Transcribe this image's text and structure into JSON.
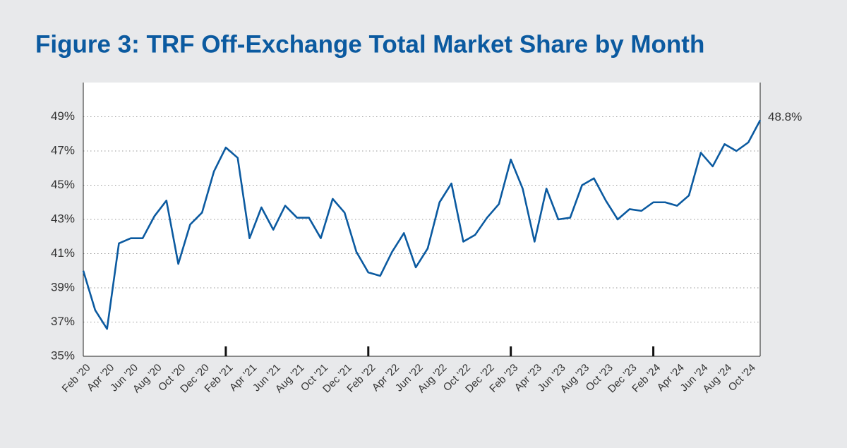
{
  "chart_data": {
    "type": "line",
    "title": "Figure 3: TRF Off-Exchange Total Market Share by Month",
    "categories": [
      "Feb '20",
      null,
      "Apr '20",
      null,
      "Jun '20",
      null,
      "Aug '20",
      null,
      "Oct '20",
      null,
      "Dec '20",
      null,
      "Feb '21",
      null,
      "Apr '21",
      null,
      "Jun '21",
      null,
      "Aug '21",
      null,
      "Oct '21",
      null,
      "Dec '21",
      null,
      "Feb '22",
      null,
      "Apr '22",
      null,
      "Jun '22",
      null,
      "Aug '22",
      null,
      "Oct '22",
      null,
      "Dec '22",
      null,
      "Feb '23",
      null,
      "Apr '23",
      null,
      "Jun '23",
      null,
      "Aug '23",
      null,
      "Oct '23",
      null,
      "Dec '23",
      null,
      "Feb '24",
      null,
      "Apr '24",
      null,
      "Jun '24",
      null,
      "Aug '24",
      null,
      "Oct '24",
      null
    ],
    "series": [
      {
        "name": "TRF Off-Exchange Total Market Share",
        "color": "#0b5aa0",
        "values": [
          40.0,
          37.7,
          36.6,
          41.6,
          41.9,
          41.9,
          43.2,
          44.1,
          40.4,
          42.7,
          43.4,
          45.8,
          47.2,
          46.6,
          41.9,
          43.7,
          42.4,
          43.8,
          43.1,
          43.1,
          41.9,
          44.2,
          43.4,
          41.1,
          39.9,
          39.7,
          41.1,
          42.2,
          40.2,
          41.3,
          44.0,
          45.1,
          41.7,
          42.1,
          43.1,
          43.9,
          46.5,
          44.8,
          41.7,
          44.8,
          43.0,
          43.1,
          45.0,
          45.4,
          44.1,
          43.0,
          43.6,
          43.5,
          44.0,
          44.0,
          43.8,
          44.4,
          46.9,
          46.1,
          47.4,
          47.0,
          47.5,
          48.8
        ],
        "value_labels": [
          null,
          null,
          null,
          null,
          null,
          null,
          null,
          null,
          null,
          null,
          null,
          null,
          null,
          null,
          null,
          null,
          null,
          null,
          null,
          null,
          null,
          null,
          null,
          null,
          null,
          null,
          null,
          null,
          null,
          null,
          null,
          null,
          null,
          null,
          null,
          null,
          null,
          null,
          null,
          null,
          null,
          null,
          null,
          null,
          null,
          null,
          null,
          null,
          null,
          null,
          null,
          null,
          null,
          null,
          null,
          null,
          null,
          "48.8%"
        ]
      }
    ],
    "ylim": [
      35,
      51
    ],
    "yticks": [
      {
        "value": 35,
        "label": "35%"
      },
      {
        "value": 37,
        "label": "37%"
      },
      {
        "value": 39,
        "label": "39%"
      },
      {
        "value": 41,
        "label": "41%"
      },
      {
        "value": 43,
        "label": "43%"
      },
      {
        "value": 45,
        "label": "45%"
      },
      {
        "value": 47,
        "label": "47%"
      },
      {
        "value": 49,
        "label": "49%"
      }
    ],
    "grid": true
  }
}
